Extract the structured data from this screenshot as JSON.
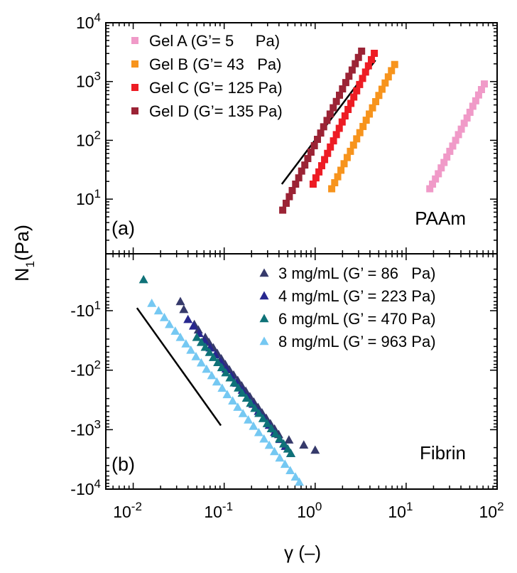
{
  "chart_data": [
    {
      "type": "scatter",
      "panel_label": "(a)",
      "material": "PAAm",
      "y_scale": "log",
      "ylim": [
        1,
        10000
      ],
      "x_scale": "log",
      "xlim": [
        0.005,
        100
      ],
      "yticks": [
        {
          "value": 10,
          "label": "10",
          "exp": "1"
        },
        {
          "value": 100,
          "label": "10",
          "exp": "2"
        },
        {
          "value": 1000,
          "label": "10",
          "exp": "3"
        },
        {
          "value": 10000,
          "label": "10",
          "exp": "4"
        }
      ],
      "legend_position": "top-left",
      "series": [
        {
          "name": "Gel A (G’= 5     Pa)",
          "color": "#f09ac8",
          "marker": "square",
          "points": [
            [
              18.2,
              15
            ],
            [
              19.5,
              18
            ],
            [
              21,
              22
            ],
            [
              22.6,
              27
            ],
            [
              24.3,
              34
            ],
            [
              26.1,
              42
            ],
            [
              28,
              52
            ],
            [
              30.2,
              65
            ],
            [
              32.5,
              80
            ],
            [
              35,
              100
            ],
            [
              37.6,
              125
            ],
            [
              40.4,
              155
            ],
            [
              43.5,
              195
            ],
            [
              46.7,
              240
            ],
            [
              50.3,
              300
            ],
            [
              54.1,
              380
            ],
            [
              58.2,
              470
            ],
            [
              62.6,
              590
            ],
            [
              67.3,
              730
            ],
            [
              72.4,
              910
            ]
          ]
        },
        {
          "name": "Gel B (G’= 43   Pa)",
          "color": "#f7941d",
          "marker": "square",
          "points": [
            [
              1.52,
              15
            ],
            [
              1.64,
              19
            ],
            [
              1.77,
              24
            ],
            [
              1.92,
              31
            ],
            [
              2.08,
              40
            ],
            [
              2.25,
              51
            ],
            [
              2.44,
              65
            ],
            [
              2.64,
              83
            ],
            [
              2.86,
              106
            ],
            [
              3.1,
              135
            ],
            [
              3.36,
              172
            ],
            [
              3.64,
              220
            ],
            [
              3.94,
              280
            ],
            [
              4.27,
              357
            ],
            [
              4.63,
              455
            ],
            [
              5.01,
              580
            ],
            [
              5.43,
              740
            ],
            [
              5.88,
              945
            ],
            [
              6.37,
              1200
            ],
            [
              6.9,
              1530
            ],
            [
              7.48,
              1950
            ]
          ]
        },
        {
          "name": "Gel C (G’= 125 Pa)",
          "color": "#ed1c24",
          "marker": "square",
          "points": [
            [
              0.95,
              18
            ],
            [
              1.02,
              23
            ],
            [
              1.1,
              29
            ],
            [
              1.18,
              37
            ],
            [
              1.27,
              47
            ],
            [
              1.37,
              60
            ],
            [
              1.47,
              77
            ],
            [
              1.59,
              98
            ],
            [
              1.71,
              125
            ],
            [
              1.84,
              160
            ],
            [
              1.98,
              205
            ],
            [
              2.13,
              260
            ],
            [
              2.3,
              335
            ],
            [
              2.47,
              425
            ],
            [
              2.66,
              545
            ],
            [
              2.86,
              695
            ],
            [
              3.08,
              890
            ],
            [
              3.32,
              1130
            ],
            [
              3.58,
              1450
            ],
            [
              3.85,
              1850
            ],
            [
              4.15,
              2360
            ],
            [
              4.47,
              3020
            ]
          ]
        },
        {
          "name": "Gel D (G’= 135 Pa)",
          "color": "#9b2335",
          "marker": "square",
          "points": [
            [
              0.44,
              6.5
            ],
            [
              0.48,
              8.5
            ],
            [
              0.52,
              11
            ],
            [
              0.56,
              14
            ],
            [
              0.61,
              18
            ],
            [
              0.66,
              23
            ],
            [
              0.71,
              30
            ],
            [
              0.77,
              38
            ],
            [
              0.83,
              49
            ],
            [
              0.9,
              63
            ],
            [
              0.98,
              81
            ],
            [
              1.06,
              104
            ],
            [
              1.15,
              133
            ],
            [
              1.24,
              170
            ],
            [
              1.35,
              218
            ],
            [
              1.46,
              280
            ],
            [
              1.58,
              358
            ],
            [
              1.71,
              458
            ],
            [
              1.85,
              586
            ],
            [
              2.0,
              750
            ],
            [
              2.17,
              960
            ],
            [
              2.35,
              1230
            ],
            [
              2.55,
              1570
            ],
            [
              2.76,
              2010
            ],
            [
              2.99,
              2570
            ],
            [
              3.24,
              3290
            ]
          ]
        }
      ],
      "guide_line": {
        "x1": 0.43,
        "y1": 18,
        "x2": 4.6,
        "y2": 2300
      }
    },
    {
      "type": "scatter",
      "panel_label": "(b)",
      "material": "Fibrin",
      "y_scale": "symlog-negative",
      "ylim": [
        -1,
        -10000
      ],
      "x_scale": "log",
      "xlim": [
        0.005,
        100
      ],
      "yticks": [
        {
          "value": -10,
          "label": "-10",
          "exp": "1"
        },
        {
          "value": -100,
          "label": "-10",
          "exp": "2"
        },
        {
          "value": -1000,
          "label": "-10",
          "exp": "3"
        },
        {
          "value": -10000,
          "label": "-10",
          "exp": "4"
        }
      ],
      "legend_position": "top-right",
      "series": [
        {
          "name": "3 mg/mL (G’ = 86   Pa)",
          "color": "#363a6b",
          "marker": "triangle",
          "points": [
            [
              0.033,
              -7
            ],
            [
              0.036,
              -9.5
            ],
            [
              0.047,
              -17
            ],
            [
              0.052,
              -21
            ],
            [
              0.062,
              -28
            ],
            [
              0.068,
              -34
            ],
            [
              0.076,
              -42
            ],
            [
              0.084,
              -52
            ],
            [
              0.093,
              -64
            ],
            [
              0.103,
              -80
            ],
            [
              0.114,
              -98
            ],
            [
              0.127,
              -120
            ],
            [
              0.141,
              -148
            ],
            [
              0.156,
              -183
            ],
            [
              0.173,
              -225
            ],
            [
              0.192,
              -278
            ],
            [
              0.212,
              -342
            ],
            [
              0.236,
              -422
            ],
            [
              0.261,
              -520
            ],
            [
              0.29,
              -640
            ],
            [
              0.322,
              -790
            ],
            [
              0.358,
              -970
            ],
            [
              0.397,
              -1200
            ],
            [
              0.515,
              -1480
            ],
            [
              0.75,
              -1800
            ],
            [
              1.0,
              -2200
            ]
          ]
        },
        {
          "name": "4 mg/mL (G’ = 223 Pa)",
          "color": "#27278f",
          "marker": "triangle",
          "points": [
            [
              0.04,
              -14
            ],
            [
              0.046,
              -18
            ],
            [
              0.053,
              -24
            ],
            [
              0.061,
              -32
            ],
            [
              0.07,
              -42
            ],
            [
              0.08,
              -55
            ],
            [
              0.092,
              -72
            ],
            [
              0.105,
              -95
            ],
            [
              0.12,
              -125
            ],
            [
              0.138,
              -165
            ],
            [
              0.158,
              -216
            ],
            [
              0.181,
              -284
            ],
            [
              0.208,
              -372
            ],
            [
              0.238,
              -490
            ],
            [
              0.273,
              -640
            ],
            [
              0.313,
              -840
            ],
            [
              0.358,
              -1100
            ],
            [
              0.411,
              -1450
            ],
            [
              0.471,
              -1900
            ],
            [
              0.54,
              -2500
            ]
          ]
        },
        {
          "name": "6 mg/mL (G’ = 470 Pa)",
          "color": "#0f7278",
          "marker": "triangle",
          "points": [
            [
              0.013,
              -3
            ],
            [
              0.05,
              -28
            ],
            [
              0.056,
              -34
            ],
            [
              0.062,
              -41
            ],
            [
              0.069,
              -50
            ],
            [
              0.076,
              -61
            ],
            [
              0.085,
              -74
            ],
            [
              0.094,
              -90
            ],
            [
              0.104,
              -110
            ],
            [
              0.116,
              -134
            ],
            [
              0.129,
              -163
            ],
            [
              0.143,
              -198
            ],
            [
              0.158,
              -242
            ],
            [
              0.176,
              -294
            ],
            [
              0.195,
              -358
            ],
            [
              0.217,
              -436
            ],
            [
              0.241,
              -530
            ],
            [
              0.267,
              -646
            ],
            [
              0.297,
              -786
            ],
            [
              0.33,
              -957
            ],
            [
              0.366,
              -1165
            ],
            [
              0.406,
              -1418
            ],
            [
              0.451,
              -1726
            ],
            [
              0.5,
              -2100
            ],
            [
              0.54,
              -2500
            ]
          ]
        },
        {
          "name": "8 mg/mL (G’ = 963 Pa)",
          "color": "#75c8f2",
          "marker": "triangle",
          "points": [
            [
              0.016,
              -7.5
            ],
            [
              0.019,
              -10
            ],
            [
              0.022,
              -13
            ],
            [
              0.025,
              -17
            ],
            [
              0.029,
              -22
            ],
            [
              0.033,
              -28
            ],
            [
              0.038,
              -36
            ],
            [
              0.043,
              -46
            ],
            [
              0.049,
              -59
            ],
            [
              0.056,
              -75
            ],
            [
              0.064,
              -96
            ],
            [
              0.073,
              -123
            ],
            [
              0.083,
              -157
            ],
            [
              0.095,
              -200
            ],
            [
              0.108,
              -256
            ],
            [
              0.124,
              -327
            ],
            [
              0.141,
              -418
            ],
            [
              0.161,
              -534
            ],
            [
              0.184,
              -682
            ],
            [
              0.21,
              -872
            ],
            [
              0.24,
              -1114
            ],
            [
              0.274,
              -1424
            ],
            [
              0.313,
              -1820
            ],
            [
              0.357,
              -2326
            ],
            [
              0.408,
              -2973
            ],
            [
              0.466,
              -3800
            ],
            [
              0.532,
              -4856
            ],
            [
              0.607,
              -6206
            ],
            [
              0.67,
              -7600
            ]
          ]
        }
      ],
      "guide_line": {
        "x1": 0.011,
        "y1": -9,
        "x2": 0.092,
        "y2": -850
      }
    }
  ],
  "axes": {
    "ylabel": "N",
    "ylabel_sub": "1",
    "ylabel_unit": "(Pa)",
    "xlabel": "γ (–)",
    "xticks": [
      {
        "value": 0.01,
        "label": "10",
        "exp": "-2"
      },
      {
        "value": 0.1,
        "label": "10",
        "exp": "-1"
      },
      {
        "value": 1,
        "label": "10",
        "exp": "0"
      },
      {
        "value": 10,
        "label": "10",
        "exp": "1"
      },
      {
        "value": 100,
        "label": "10",
        "exp": "2"
      }
    ]
  }
}
